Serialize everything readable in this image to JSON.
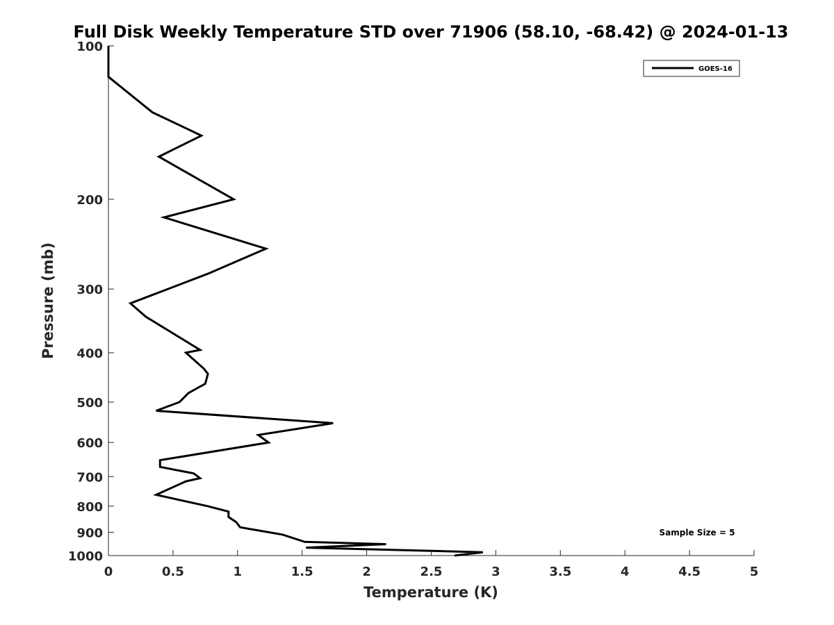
{
  "chart_data": {
    "type": "line",
    "title": "Full Disk Weekly Temperature STD over 71906 (58.10, -68.42) @ 2024-01-13",
    "xlabel": "Temperature (K)",
    "ylabel": "Pressure (mb)",
    "xlim": [
      0,
      5
    ],
    "ylim": [
      1000,
      100
    ],
    "y_scale": "log",
    "x_ticks": [
      "0",
      "0.5",
      "1",
      "1.5",
      "2",
      "2.5",
      "3",
      "3.5",
      "4",
      "4.5",
      "5"
    ],
    "y_ticks": [
      "100",
      "200",
      "300",
      "400",
      "500",
      "600",
      "700",
      "800",
      "900",
      "1000"
    ],
    "grid": false,
    "legend_position": "top-right",
    "annotation": "Sample Size = 5",
    "series": [
      {
        "name": "GOES-16",
        "color": "#000000",
        "points": [
          [
            0,
            100
          ],
          [
            0,
            115
          ],
          [
            0.34,
            135
          ],
          [
            0.72,
            150
          ],
          [
            0.39,
            165
          ],
          [
            0.97,
            200
          ],
          [
            0.43,
            217
          ],
          [
            1.22,
            250
          ],
          [
            0.77,
            280
          ],
          [
            0.17,
            320
          ],
          [
            0.29,
            340
          ],
          [
            0.71,
            395
          ],
          [
            0.6,
            400
          ],
          [
            0.74,
            430
          ],
          [
            0.77,
            440
          ],
          [
            0.75,
            460
          ],
          [
            0.62,
            480
          ],
          [
            0.55,
            500
          ],
          [
            0.37,
            520
          ],
          [
            1.74,
            550
          ],
          [
            1.16,
            580
          ],
          [
            1.24,
            600
          ],
          [
            0.4,
            650
          ],
          [
            0.4,
            670
          ],
          [
            0.66,
            690
          ],
          [
            0.71,
            705
          ],
          [
            0.6,
            715
          ],
          [
            0.37,
            760
          ],
          [
            0.52,
            775
          ],
          [
            0.77,
            800
          ],
          [
            0.93,
            820
          ],
          [
            0.93,
            840
          ],
          [
            0.99,
            860
          ],
          [
            1.02,
            880
          ],
          [
            1.35,
            910
          ],
          [
            1.52,
            940
          ],
          [
            2.15,
            950
          ],
          [
            1.53,
            965
          ],
          [
            2.9,
            985
          ],
          [
            2.68,
            1000
          ]
        ]
      }
    ]
  }
}
